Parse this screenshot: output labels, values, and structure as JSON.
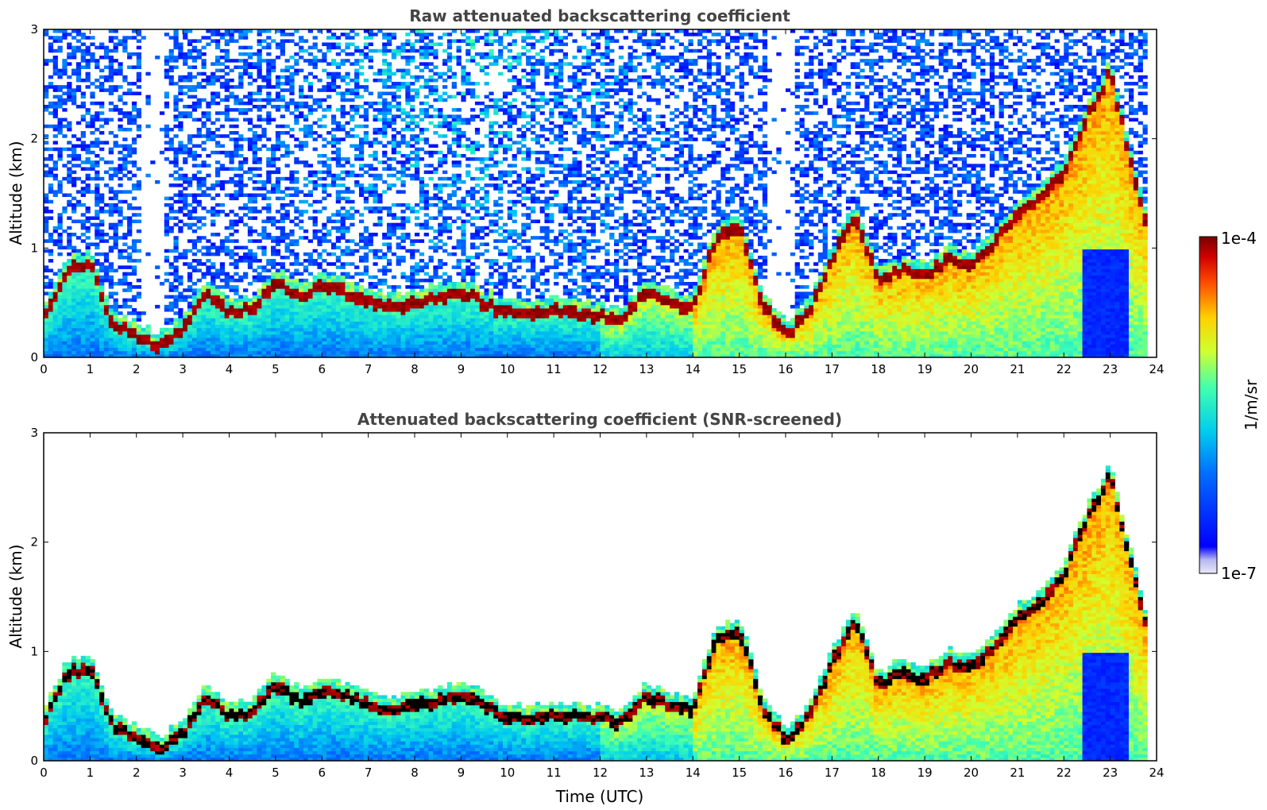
{
  "chart_data": [
    {
      "type": "heatmap",
      "title": "Raw attenuated backscattering coefficient",
      "xlabel": "",
      "ylabel": "Altitude (km)",
      "xlim": [
        0,
        24
      ],
      "ylim": [
        0,
        3
      ],
      "xticks": [
        "0",
        "1",
        "2",
        "3",
        "4",
        "5",
        "6",
        "7",
        "8",
        "9",
        "10",
        "11",
        "12",
        "13",
        "14",
        "15",
        "16",
        "17",
        "18",
        "19",
        "20",
        "21",
        "22",
        "23",
        "24"
      ],
      "yticks": [
        "0",
        "1",
        "2",
        "3"
      ],
      "color_scale": "log10",
      "boundary_layer_top_km": {
        "x": [
          0,
          0.5,
          1,
          1.5,
          2,
          2.5,
          3,
          3.5,
          4,
          4.5,
          5,
          5.5,
          6,
          6.5,
          7,
          7.5,
          8,
          8.5,
          9,
          9.5,
          10,
          10.5,
          11,
          11.5,
          12,
          12.5,
          13,
          13.5,
          14,
          14.5,
          15,
          15.5,
          16,
          16.5,
          17,
          17.5,
          18,
          18.5,
          19,
          19.5,
          20,
          20.5,
          21,
          21.5,
          22,
          22.5,
          23,
          23.5,
          23.8
        ],
        "y": [
          0.35,
          0.8,
          0.85,
          0.3,
          0.2,
          0.1,
          0.25,
          0.6,
          0.4,
          0.45,
          0.7,
          0.55,
          0.65,
          0.6,
          0.5,
          0.45,
          0.5,
          0.55,
          0.6,
          0.5,
          0.4,
          0.38,
          0.42,
          0.4,
          0.38,
          0.35,
          0.6,
          0.5,
          0.45,
          1.1,
          1.2,
          0.5,
          0.2,
          0.4,
          0.9,
          1.3,
          0.7,
          0.8,
          0.75,
          0.9,
          0.85,
          1.05,
          1.3,
          1.45,
          1.7,
          2.2,
          2.6,
          1.7,
          1.15
        ]
      },
      "no_data_after_hour": 23.8
    },
    {
      "type": "heatmap",
      "title": "Attenuated backscattering coefficient (SNR-screened)",
      "xlabel": "Time (UTC)",
      "ylabel": "Altitude (km)",
      "xlim": [
        0,
        24
      ],
      "ylim": [
        0,
        3
      ],
      "xticks": [
        "0",
        "1",
        "2",
        "3",
        "4",
        "5",
        "6",
        "7",
        "8",
        "9",
        "10",
        "11",
        "12",
        "13",
        "14",
        "15",
        "16",
        "17",
        "18",
        "19",
        "20",
        "21",
        "22",
        "23",
        "24"
      ],
      "yticks": [
        "0",
        "1",
        "2",
        "3"
      ],
      "color_scale": "log10",
      "screened": true,
      "no_data_after_hour": 23.8
    }
  ],
  "colorbar": {
    "label": "1/m/sr",
    "max_label": "1e-4",
    "min_label": "1e-7",
    "max_value": 0.0001,
    "min_value": 1e-07,
    "colormap": "jet"
  },
  "colors": {
    "background": "#ffffff",
    "title": "#444444",
    "axes": "#000000",
    "screened_peak": "#000000"
  }
}
